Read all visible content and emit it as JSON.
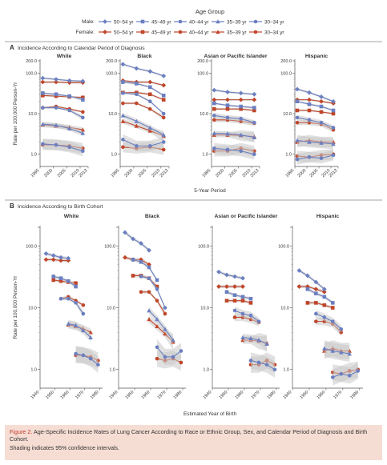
{
  "caption": {
    "figure_label": "Figure 2.",
    "title": "Age-Specific Incidence Rates of Lung Cancer According to Race or Ethnic Group, Sex, and Calendar Period of Diagnosis and Birth Cohort.",
    "note": "Shading indicates 95% confidence intervals."
  },
  "legend": {
    "title": "Age Group",
    "male_label": "Male:",
    "female_label": "Female:",
    "groups": [
      "50–54 yr",
      "45–49 yr",
      "40–44 yr",
      "35–39 yr",
      "30–34 yr"
    ],
    "markers": [
      "diamond",
      "square",
      "circle",
      "triangle",
      "circle"
    ]
  },
  "colors": {
    "male": "#6b7fc0",
    "female": "#c0462a",
    "ci": "#c8c8c8",
    "rule": "#888888",
    "caption_bg": "#f6ddd3",
    "fig_label": "#c0392b"
  },
  "chart_data": [
    {
      "panel": "A",
      "type": "line",
      "title": "Incidence According to Calendar Period of Diagnosis",
      "xlabel": "5-Year Period",
      "ylabel": "Rate per 100,000 Person-Yr",
      "log_y": true,
      "ylim": [
        0.5,
        200
      ],
      "yticks": [
        "1.0",
        "10.0",
        "100.0",
        "200.0"
      ],
      "xlim": [
        1995,
        2013
      ],
      "xticks": [
        "1995",
        "2000",
        "2005",
        "2010",
        "2013"
      ],
      "x": [
        1996,
        2001,
        2006,
        2011
      ],
      "subplots": [
        {
          "title": "White",
          "male": [
            [
              75,
              70,
              65,
              63
            ],
            [
              32,
              30,
              27,
              22
            ],
            [
              14,
              14,
              12,
              8
            ],
            [
              5.5,
              5.2,
              4.3,
              3.3
            ],
            [
              1.8,
              1.7,
              1.5,
              1.2
            ]
          ],
          "female": [
            [
              60,
              60,
              58,
              58
            ],
            [
              28,
              27,
              26,
              25
            ],
            [
              14,
              15,
              13,
              11
            ],
            [
              5.3,
              5.0,
              4.6,
              4.0
            ],
            [
              1.7,
              1.7,
              1.6,
              1.4
            ]
          ]
        },
        {
          "title": "Black",
          "male": [
            [
              165,
              130,
              110,
              85
            ],
            [
              60,
              55,
              45,
              28
            ],
            [
              32,
              30,
              20,
              10
            ],
            [
              9,
              6.5,
              4.5,
              3.0
            ],
            [
              2.3,
              1.6,
              1.6,
              2.0
            ]
          ],
          "female": [
            [
              65,
              60,
              60,
              50
            ],
            [
              33,
              33,
              30,
              22
            ],
            [
              18,
              18,
              13,
              8
            ],
            [
              6.5,
              5,
              3.8,
              2.8
            ],
            [
              1.5,
              1.4,
              1.5,
              1.3
            ]
          ]
        },
        {
          "title": "Asian or Pacific Islander",
          "male": [
            [
              38,
              34,
              32,
              30
            ],
            [
              18,
              16,
              15,
              14
            ],
            [
              9,
              8,
              7.5,
              6
            ],
            [
              3.3,
              3.2,
              3.0,
              2.6
            ],
            [
              1.4,
              1.3,
              1.2,
              1.0
            ]
          ],
          "female": [
            [
              22,
              22,
              22,
              22
            ],
            [
              13,
              13,
              13,
              12
            ],
            [
              7,
              7,
              6.5,
              5.8
            ],
            [
              3.0,
              3.0,
              2.9,
              2.7
            ],
            [
              1.2,
              1.2,
              1.4,
              1.2
            ]
          ]
        },
        {
          "title": "Hispanic",
          "male": [
            [
              40,
              33,
              26,
              20
            ],
            [
              20,
              17,
              15,
              12
            ],
            [
              8,
              7,
              6,
              4.5
            ],
            [
              2.2,
              2.0,
              1.9,
              1.8
            ],
            [
              0.75,
              0.85,
              0.8,
              0.95
            ]
          ],
          "female": [
            [
              22,
              22,
              20,
              18
            ],
            [
              12,
              12,
              11,
              10
            ],
            [
              6,
              6,
              5.5,
              4
            ],
            [
              2.0,
              2.2,
              2.0,
              2.0
            ],
            [
              0.9,
              0.85,
              0.95,
              1.0
            ]
          ]
        }
      ]
    },
    {
      "panel": "B",
      "type": "line",
      "title": "Incidence According to Birth Cohort",
      "xlabel": "Estimated Year of Birth",
      "ylabel": "Rate per 100,000 Person-Yr",
      "log_y": true,
      "ylim": [
        0.5,
        200
      ],
      "yticks": [
        "1.0",
        "10.0",
        "100.0"
      ],
      "xlim": [
        1940,
        1982
      ],
      "xticks": [
        "1940",
        "1950",
        "1960",
        "1970",
        "1980"
      ],
      "age_offsets": [
        52,
        47,
        42,
        37,
        32
      ],
      "periods": [
        1996,
        2001,
        2006,
        2011
      ],
      "subplots": [
        {
          "title": "White"
        },
        {
          "title": "Black"
        },
        {
          "title": "Asian or Pacific Islander"
        },
        {
          "title": "Hispanic"
        }
      ]
    }
  ]
}
